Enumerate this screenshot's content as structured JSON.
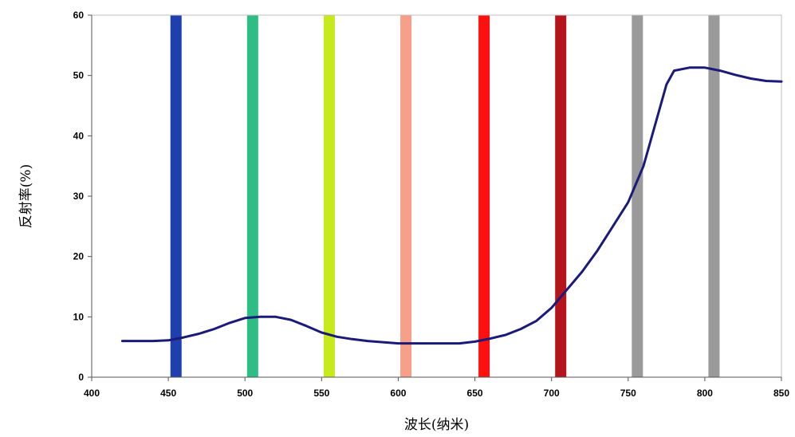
{
  "chart_data": {
    "type": "line",
    "title": "",
    "xlabel": "波长(纳米)",
    "ylabel": "反射率(%)",
    "xlim": [
      400,
      850
    ],
    "ylim": [
      0,
      60
    ],
    "xticks": [
      400,
      450,
      500,
      550,
      600,
      650,
      700,
      750,
      800,
      850
    ],
    "yticks": [
      0,
      10,
      20,
      30,
      40,
      50,
      60
    ],
    "grid": false,
    "legend": "none",
    "bands": [
      {
        "center": 455,
        "color": "#1f3fae"
      },
      {
        "center": 505,
        "color": "#2ebd85"
      },
      {
        "center": 555,
        "color": "#c7ea1c"
      },
      {
        "center": 605,
        "color": "#f6a08a"
      },
      {
        "center": 656,
        "color": "#ff1010"
      },
      {
        "center": 706,
        "color": "#b5141c"
      },
      {
        "center": 756,
        "color": "#9a9a9a"
      },
      {
        "center": 806,
        "color": "#9a9a9a"
      }
    ],
    "series": [
      {
        "color": "#1a1a7a",
        "x": [
          420,
          440,
          450,
          460,
          470,
          480,
          490,
          500,
          510,
          520,
          530,
          540,
          550,
          560,
          570,
          580,
          590,
          600,
          620,
          640,
          650,
          660,
          670,
          680,
          690,
          700,
          710,
          720,
          730,
          740,
          750,
          760,
          770,
          775,
          780,
          790,
          800,
          810,
          820,
          830,
          840,
          850
        ],
        "y": [
          6.0,
          6.0,
          6.1,
          6.6,
          7.2,
          8.0,
          9.0,
          9.8,
          10.0,
          10.0,
          9.5,
          8.5,
          7.4,
          6.7,
          6.3,
          6.0,
          5.8,
          5.6,
          5.6,
          5.6,
          5.9,
          6.4,
          7.0,
          8.0,
          9.3,
          11.5,
          14.5,
          17.5,
          21.0,
          25.0,
          29.0,
          35.0,
          44.0,
          48.5,
          50.8,
          51.3,
          51.3,
          50.8,
          50.1,
          49.5,
          49.1,
          49.0
        ]
      }
    ]
  }
}
